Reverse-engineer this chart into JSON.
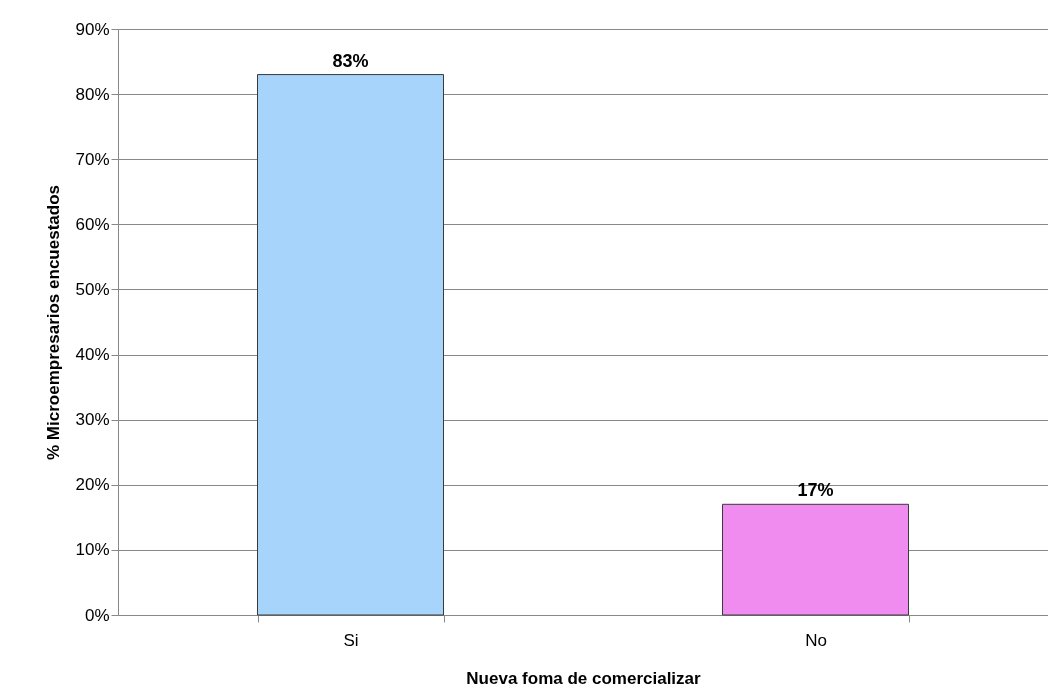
{
  "chart_data": {
    "type": "bar",
    "xlabel": "Nueva foma de comercializar",
    "ylabel": "% Microempresarios encuestados",
    "categories": [
      "Si",
      "No"
    ],
    "values": [
      83,
      17
    ],
    "colors": [
      "#a6d4fa",
      "#f08cf0"
    ],
    "value_labels": [
      "83%",
      "17%"
    ],
    "ylim": [
      0,
      90
    ],
    "yticks": [
      {
        "value": 0,
        "label": "0%"
      },
      {
        "value": 10,
        "label": "10%"
      },
      {
        "value": 20,
        "label": "20%"
      },
      {
        "value": 30,
        "label": "30%"
      },
      {
        "value": 40,
        "label": "40%"
      },
      {
        "value": 50,
        "label": "50%"
      },
      {
        "value": 60,
        "label": "60%"
      },
      {
        "value": 70,
        "label": "70%"
      },
      {
        "value": 80,
        "label": "80%"
      },
      {
        "value": 90,
        "label": "90%"
      }
    ],
    "grid": "y"
  }
}
